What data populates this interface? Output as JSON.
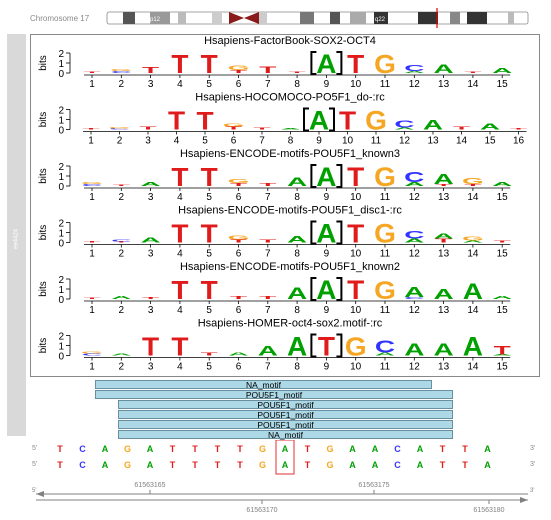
{
  "colors": {
    "A": "#00a000",
    "C": "#3333ff",
    "G": "#f5a623",
    "T": "#e01b1b"
  },
  "ideogram": {
    "label": "Chromosome 17",
    "bands": [
      "p12",
      "q12",
      "q22"
    ]
  },
  "sidebar_label": "ee4424",
  "logo_ylabel": "bits",
  "logo_yticks": [
    "2",
    "1",
    "0"
  ],
  "logos": [
    {
      "title": "Hsapiens-FactorBook-SOX2-OCT4",
      "positions": [
        "1",
        "2",
        "3",
        "4",
        "5",
        "6",
        "7",
        "8",
        "9",
        "10",
        "11",
        "12",
        "13",
        "14",
        "15"
      ],
      "columns": [
        [
          [
            "T",
            0.12
          ]
        ],
        [
          [
            "C",
            0.2
          ],
          [
            "G",
            0.2
          ]
        ],
        [
          [
            "T",
            0.6
          ]
        ],
        [
          [
            "T",
            1.9
          ]
        ],
        [
          [
            "T",
            1.9
          ]
        ],
        [
          [
            "G",
            0.45
          ],
          [
            "T",
            0.3
          ]
        ],
        [
          [
            "T",
            0.7
          ]
        ],
        [
          [
            "T",
            0.1
          ]
        ],
        [
          [
            "A",
            1.95
          ]
        ],
        [
          [
            "T",
            1.9
          ]
        ],
        [
          [
            "G",
            1.9
          ]
        ],
        [
          [
            "C",
            0.6
          ],
          [
            "A",
            0.2
          ]
        ],
        [
          [
            "A",
            0.9
          ]
        ],
        [
          [
            "T",
            0.1
          ]
        ],
        [
          [
            "A",
            0.5
          ]
        ]
      ],
      "box": 8
    },
    {
      "title": "Hsapiens-HOCOMOCO-PO5F1_do-:rc",
      "positions": [
        "1",
        "2",
        "3",
        "4",
        "5",
        "6",
        "7",
        "8",
        "9",
        "10",
        "11",
        "12",
        "13",
        "14",
        "15",
        "16"
      ],
      "columns": [
        [
          [
            "T",
            0.1
          ]
        ],
        [
          [
            "C",
            0.1
          ],
          [
            "G",
            0.1
          ]
        ],
        [
          [
            "T",
            0.3
          ]
        ],
        [
          [
            "T",
            1.9
          ]
        ],
        [
          [
            "T",
            1.8
          ]
        ],
        [
          [
            "T",
            0.3
          ],
          [
            "G",
            0.3
          ]
        ],
        [
          [
            "T",
            0.2
          ]
        ],
        [
          [
            "A",
            0.15
          ]
        ],
        [
          [
            "A",
            1.95
          ]
        ],
        [
          [
            "T",
            1.9
          ]
        ],
        [
          [
            "G",
            1.95
          ]
        ],
        [
          [
            "C",
            0.75
          ],
          [
            "A",
            0.2
          ]
        ],
        [
          [
            "A",
            1.0
          ]
        ],
        [
          [
            "T",
            0.3
          ]
        ],
        [
          [
            "A",
            0.6
          ]
        ],
        [
          [
            "T",
            0.15
          ]
        ]
      ],
      "box": 8
    },
    {
      "title": "Hsapiens-ENCODE-motifs-POU5F1_known3",
      "positions": [
        "1",
        "2",
        "3",
        "4",
        "5",
        "6",
        "7",
        "8",
        "9",
        "10",
        "11",
        "12",
        "13",
        "14",
        "15"
      ],
      "columns": [
        [
          [
            "C",
            0.2
          ],
          [
            "G",
            0.2
          ]
        ],
        [
          [
            "T",
            0.15
          ]
        ],
        [
          [
            "A",
            0.4
          ]
        ],
        [
          [
            "T",
            1.9
          ]
        ],
        [
          [
            "T",
            1.9
          ]
        ],
        [
          [
            "G",
            0.4
          ],
          [
            "T",
            0.3
          ]
        ],
        [
          [
            "T",
            0.3
          ]
        ],
        [
          [
            "A",
            0.9
          ]
        ],
        [
          [
            "A",
            1.95
          ]
        ],
        [
          [
            "T",
            1.95
          ]
        ],
        [
          [
            "G",
            1.95
          ]
        ],
        [
          [
            "C",
            1.1
          ],
          [
            "A",
            0.4
          ]
        ],
        [
          [
            "A",
            1.1
          ],
          [
            "T",
            0.2
          ]
        ],
        [
          [
            "G",
            0.6
          ],
          [
            "T",
            0.2
          ]
        ],
        [
          [
            "A",
            0.4
          ]
        ]
      ],
      "box": 8
    },
    {
      "title": "Hsapiens-ENCODE-motifs-POU5F1_disc1-:rc",
      "positions": [
        "1",
        "2",
        "3",
        "4",
        "5",
        "6",
        "7",
        "8",
        "9",
        "10",
        "11",
        "12",
        "13",
        "14",
        "15"
      ],
      "columns": [
        [
          [
            "T",
            0.1
          ]
        ],
        [
          [
            "C",
            0.2
          ],
          [
            "T",
            0.1
          ]
        ],
        [
          [
            "A",
            0.5
          ]
        ],
        [
          [
            "T",
            1.9
          ]
        ],
        [
          [
            "T",
            1.9
          ]
        ],
        [
          [
            "G",
            0.4
          ],
          [
            "T",
            0.3
          ]
        ],
        [
          [
            "T",
            0.3
          ]
        ],
        [
          [
            "A",
            0.7
          ]
        ],
        [
          [
            "A",
            1.95
          ]
        ],
        [
          [
            "T",
            1.9
          ]
        ],
        [
          [
            "G",
            1.95
          ]
        ],
        [
          [
            "C",
            0.8
          ],
          [
            "A",
            0.4
          ]
        ],
        [
          [
            "A",
            0.5
          ],
          [
            "T",
            0.4
          ]
        ],
        [
          [
            "G",
            0.4
          ],
          [
            "A",
            0.2
          ]
        ],
        [
          [
            "T",
            0.2
          ]
        ]
      ],
      "box": 8
    },
    {
      "title": "Hsapiens-ENCODE-motifs-POU5F1_known2",
      "positions": [
        "1",
        "2",
        "3",
        "4",
        "5",
        "6",
        "7",
        "8",
        "9",
        "10",
        "11",
        "12",
        "13",
        "14",
        "15"
      ],
      "columns": [
        [
          [
            "T",
            0.1
          ]
        ],
        [
          [
            "A",
            0.3
          ]
        ],
        [
          [
            "T",
            0.2
          ]
        ],
        [
          [
            "T",
            1.9
          ]
        ],
        [
          [
            "T",
            1.9
          ]
        ],
        [
          [
            "T",
            0.3
          ]
        ],
        [
          [
            "T",
            0.3
          ]
        ],
        [
          [
            "A",
            1.2
          ]
        ],
        [
          [
            "A",
            1.95
          ]
        ],
        [
          [
            "T",
            1.95
          ]
        ],
        [
          [
            "G",
            1.8
          ]
        ],
        [
          [
            "A",
            1.1
          ],
          [
            "C",
            0.2
          ]
        ],
        [
          [
            "A",
            1.1
          ]
        ],
        [
          [
            "A",
            1.6
          ]
        ],
        [
          [
            "A",
            0.3
          ]
        ]
      ],
      "box": 8
    },
    {
      "title": "Hsapiens-HOMER-oct4-sox2.motif-:rc",
      "positions": [
        "1",
        "2",
        "3",
        "4",
        "5",
        "6",
        "7",
        "8",
        "9",
        "10",
        "11",
        "12",
        "13",
        "14",
        "15"
      ],
      "columns": [
        [
          [
            "C",
            0.2
          ],
          [
            "G",
            0.2
          ]
        ],
        [
          [
            "A",
            0.2
          ]
        ],
        [
          [
            "T",
            1.9
          ]
        ],
        [
          [
            "T",
            1.9
          ]
        ],
        [
          [
            "T",
            0.3
          ]
        ],
        [
          [
            "A",
            0.3
          ]
        ],
        [
          [
            "A",
            1.0
          ]
        ],
        [
          [
            "A",
            1.95
          ]
        ],
        [
          [
            "T",
            1.95
          ]
        ],
        [
          [
            "G",
            1.9
          ]
        ],
        [
          [
            "C",
            1.3
          ],
          [
            "A",
            0.3
          ]
        ],
        [
          [
            "A",
            1.3
          ]
        ],
        [
          [
            "A",
            1.3
          ]
        ],
        [
          [
            "A",
            1.95
          ]
        ],
        [
          [
            "T",
            0.9
          ],
          [
            "A",
            0.1
          ]
        ]
      ],
      "box": 8
    }
  ],
  "features": [
    "NA_motif",
    "POU5F1_motif",
    "POU5F1_motif",
    "POU5F1_motif",
    "POU5F1_motif",
    "NA_motif"
  ],
  "sequence": {
    "end5": "5'",
    "end3": "3'",
    "row1": [
      "T",
      "C",
      "A",
      "G",
      "A",
      "T",
      "T",
      "T",
      "T",
      "G",
      "A",
      "T",
      "G",
      "A",
      "A",
      "C",
      "A",
      "T",
      "T",
      "A"
    ],
    "row2": [
      "T",
      "C",
      "A",
      "G",
      "A",
      "T",
      "T",
      "T",
      "T",
      "G",
      "A",
      "T",
      "G",
      "A",
      "A",
      "C",
      "A",
      "T",
      "T",
      "A"
    ],
    "highlight": 10
  },
  "axis": {
    "end5": "5'",
    "end3": "3'",
    "top_ticks": [
      "61563165",
      "61563175"
    ],
    "bottom_ticks": [
      "61563170",
      "61563180"
    ]
  }
}
